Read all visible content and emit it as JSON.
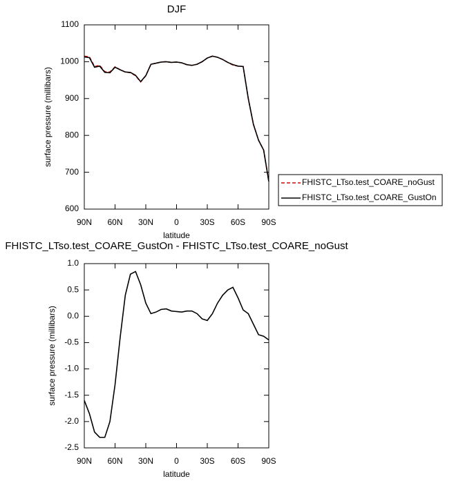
{
  "chart_data": [
    {
      "type": "line",
      "title": "DJF",
      "xlabel": "latitude",
      "ylabel": "surface pressure (millibars)",
      "x": [
        90,
        85,
        80,
        75,
        70,
        65,
        60,
        55,
        50,
        45,
        40,
        35,
        30,
        25,
        20,
        15,
        10,
        5,
        0,
        -5,
        -10,
        -15,
        -20,
        -25,
        -30,
        -35,
        -40,
        -45,
        -50,
        -55,
        -60,
        -65,
        -70,
        -75,
        -80,
        -85,
        -90
      ],
      "series": [
        {
          "name": "FHISTC_LTso.test_COARE_noGust",
          "color": "#e00000",
          "dash": true,
          "values": [
            1015,
            1013,
            987,
            990,
            973,
            972,
            986,
            978,
            972,
            970,
            962,
            945,
            962,
            993,
            996,
            999,
            1000,
            998,
            999,
            997,
            992,
            990,
            993,
            1000,
            1010,
            1015,
            1012,
            1006,
            998,
            991,
            988,
            987,
            900,
            830,
            787,
            760,
            675
          ]
        },
        {
          "name": "FHISTC_LTso.test_COARE_GustOn",
          "color": "#000000",
          "dash": false,
          "values": [
            1013,
            1011,
            985,
            988,
            971,
            970,
            985,
            978,
            972,
            971,
            963,
            946,
            962,
            993,
            996,
            999,
            1000,
            998,
            999,
            997,
            992,
            990,
            993,
            1000,
            1010,
            1015,
            1012,
            1006,
            998,
            992,
            988,
            987,
            900,
            830,
            787,
            760,
            675
          ]
        }
      ],
      "xlim": [
        90,
        -90
      ],
      "xticks": [
        {
          "value": 90,
          "label": "90N"
        },
        {
          "value": 60,
          "label": "60N"
        },
        {
          "value": 30,
          "label": "30N"
        },
        0,
        {
          "value": -30,
          "label": "30S"
        },
        {
          "value": -60,
          "label": "60S"
        },
        {
          "value": -90,
          "label": "90S"
        }
      ],
      "ylim": [
        600,
        1100
      ],
      "yticks": [
        600,
        700,
        800,
        900,
        1000,
        1100
      ],
      "legend": "right"
    },
    {
      "type": "line",
      "title": "FHISTC_LTso.test_COARE_GustOn - FHISTC_LTso.test_COARE_noGust",
      "xlabel": "latitude",
      "ylabel": "surface pressure (millibars)",
      "x": [
        90,
        85,
        80,
        75,
        70,
        65,
        60,
        55,
        50,
        45,
        40,
        35,
        30,
        25,
        20,
        15,
        10,
        5,
        0,
        -5,
        -10,
        -15,
        -20,
        -25,
        -30,
        -35,
        -40,
        -45,
        -50,
        -55,
        -60,
        -65,
        -70,
        -75,
        -80,
        -85,
        -90
      ],
      "color": "#000000",
      "values": [
        -1.6,
        -1.85,
        -2.2,
        -2.3,
        -2.3,
        -2.0,
        -1.3,
        -0.4,
        0.4,
        0.8,
        0.85,
        0.6,
        0.25,
        0.05,
        0.08,
        0.13,
        0.14,
        0.1,
        0.09,
        0.08,
        0.1,
        0.1,
        0.05,
        -0.05,
        -0.08,
        0.05,
        0.25,
        0.4,
        0.5,
        0.55,
        0.35,
        0.12,
        0.05,
        -0.15,
        -0.35,
        -0.38,
        -0.45
      ],
      "xlim": [
        90,
        -90
      ],
      "xticks": [
        {
          "value": 90,
          "label": "90N"
        },
        {
          "value": 60,
          "label": "60N"
        },
        {
          "value": 30,
          "label": "30N"
        },
        0,
        {
          "value": -30,
          "label": "30S"
        },
        {
          "value": -60,
          "label": "60S"
        },
        {
          "value": -90,
          "label": "90S"
        }
      ],
      "ylim": [
        -2.5,
        1.0
      ],
      "yticks": [
        {
          "value": -2.5,
          "label": "-2.5"
        },
        {
          "value": -2.0,
          "label": "-2.0"
        },
        {
          "value": -1.5,
          "label": "-1.5"
        },
        {
          "value": -1.0,
          "label": "-1.0"
        },
        {
          "value": -0.5,
          "label": "-0.5"
        },
        {
          "value": 0.0,
          "label": "0.0"
        },
        {
          "value": 0.5,
          "label": "0.5"
        },
        {
          "value": 1.0,
          "label": "1.0"
        }
      ]
    }
  ]
}
